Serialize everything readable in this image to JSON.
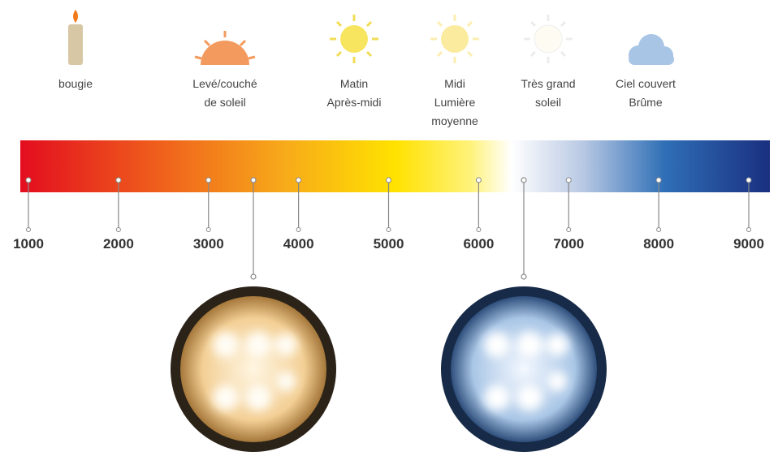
{
  "scale": {
    "ticks": [
      1000,
      2000,
      3000,
      4000,
      5000,
      6000,
      7000,
      8000,
      9000
    ]
  },
  "icons": [
    {
      "lines": [
        "bougie"
      ]
    },
    {
      "lines": [
        "Levé/couché",
        "de soleil"
      ]
    },
    {
      "lines": [
        "Matin",
        "Après-midi"
      ]
    },
    {
      "lines": [
        "Midi",
        "Lumière",
        "moyenne"
      ]
    },
    {
      "lines": [
        "Très grand",
        "soleil"
      ]
    },
    {
      "lines": [
        "Ciel couvert",
        "Brûme"
      ]
    }
  ]
}
